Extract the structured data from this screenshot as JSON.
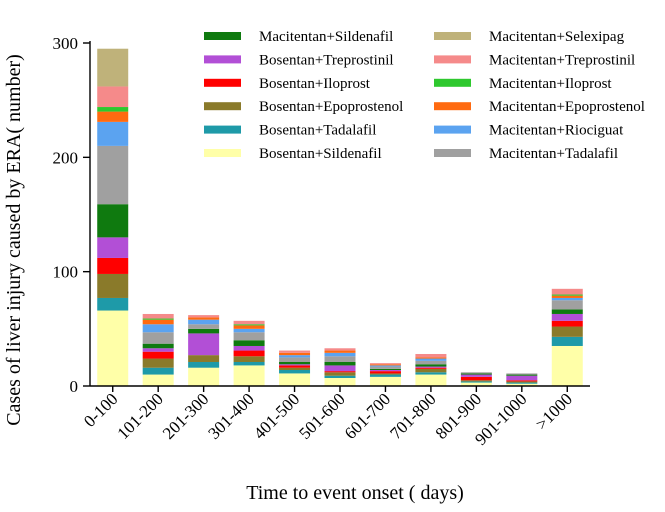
{
  "chart_data": {
    "type": "bar",
    "stacked": true,
    "title": "",
    "xlabel": "Time to event onset ( days)",
    "ylabel": "Cases of liver injury caused by ERA( number)",
    "ylim": [
      0,
      300
    ],
    "yticks": [
      0,
      100,
      200,
      300
    ],
    "categories": [
      "0-100",
      "101-200",
      "201-300",
      "301-400",
      "401-500",
      "501-600",
      "601-700",
      "701-800",
      "801-900",
      "901-1000",
      ">1000"
    ],
    "legend_position": "top-right",
    "series": [
      {
        "name": "Bosentan+Sildenafil",
        "color": "#ffffa8",
        "values": [
          66,
          10,
          16,
          18,
          11,
          7,
          8,
          10,
          3,
          2,
          35
        ]
      },
      {
        "name": "Bosentan+Tadalafil",
        "color": "#1e9aa8",
        "values": [
          11,
          6,
          5,
          3,
          3,
          2,
          2,
          2,
          1,
          1,
          8
        ]
      },
      {
        "name": "Bosentan+Epoprostenol",
        "color": "#8a7a2a",
        "values": [
          21,
          8,
          6,
          5,
          2,
          3,
          1,
          3,
          1,
          1,
          9
        ]
      },
      {
        "name": "Bosentan+Iloprost",
        "color": "#ff0000",
        "values": [
          14,
          6,
          0,
          5,
          2,
          1,
          2,
          1,
          3,
          1,
          5
        ]
      },
      {
        "name": "Bosentan+Treprostinil",
        "color": "#b24fd6",
        "values": [
          18,
          3,
          19,
          4,
          1,
          5,
          1,
          1,
          2,
          4,
          6
        ]
      },
      {
        "name": "Macitentan+Sildenafil",
        "color": "#0f7a0f",
        "values": [
          29,
          4,
          4,
          5,
          2,
          3,
          1,
          2,
          1,
          1,
          4
        ]
      },
      {
        "name": "Macitentan+Tadalafil",
        "color": "#a0a0a0",
        "values": [
          51,
          10,
          4,
          7,
          4,
          5,
          2,
          3,
          1,
          1,
          8
        ]
      },
      {
        "name": "Macitentan+Riociguat",
        "color": "#5ba3f0",
        "values": [
          21,
          7,
          4,
          3,
          2,
          3,
          1,
          2,
          0,
          0,
          2
        ]
      },
      {
        "name": "Macitentan+Epoprostenol",
        "color": "#ff6a10",
        "values": [
          9,
          4,
          2,
          3,
          2,
          2,
          1,
          1,
          0,
          0,
          2
        ]
      },
      {
        "name": "Macitentan+Iloprost",
        "color": "#2ec82e",
        "values": [
          4,
          1,
          0,
          1,
          0,
          0,
          0,
          0,
          0,
          0,
          1
        ]
      },
      {
        "name": "Macitentan+Treprostinil",
        "color": "#f58a8a",
        "values": [
          18,
          4,
          2,
          3,
          2,
          2,
          1,
          3,
          0,
          0,
          5
        ]
      },
      {
        "name": "Macitentan+Selexipag",
        "color": "#bfb27a",
        "values": [
          33,
          0,
          0,
          0,
          0,
          0,
          0,
          0,
          0,
          0,
          0
        ]
      }
    ],
    "legend_order": [
      "Macitentan+Sildenafil",
      "Macitentan+Selexipag",
      "Bosentan+Treprostinil",
      "Macitentan+Treprostinil",
      "Bosentan+Iloprost",
      "Macitentan+Iloprost",
      "Bosentan+Epoprostenol",
      "Macitentan+Epoprostenol",
      "Bosentan+Tadalafil",
      "Macitentan+Riociguat",
      "Bosentan+Sildenafil",
      "Macitentan+Tadalafil"
    ]
  }
}
